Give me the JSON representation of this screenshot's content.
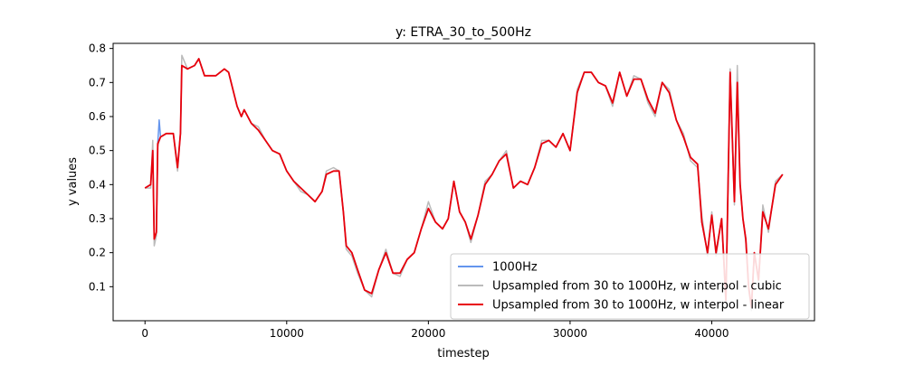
{
  "chart_data": {
    "type": "line",
    "title": "y: ETRA_30_to_500Hz",
    "xlabel": "timestep",
    "ylabel": "y values",
    "xlim": [
      -2250,
      47250
    ],
    "ylim": [
      0.0,
      0.815
    ],
    "x_ticks": [
      0,
      10000,
      20000,
      30000,
      40000
    ],
    "x_tick_labels": [
      "0",
      "10000",
      "20000",
      "30000",
      "40000"
    ],
    "y_ticks": [
      0.1,
      0.2,
      0.3,
      0.4,
      0.5,
      0.6,
      0.7,
      0.8
    ],
    "y_tick_labels": [
      "0.1",
      "0.2",
      "0.3",
      "0.4",
      "0.5",
      "0.6",
      "0.7",
      "0.8"
    ],
    "grid": false,
    "legend_position": "lower-right",
    "series": [
      {
        "name": "1000Hz",
        "color": "#6495ed",
        "x": [
          0,
          400,
          550,
          650,
          800,
          900,
          1000,
          1100,
          1500,
          2000,
          2300,
          2500,
          2600,
          3000,
          3500,
          3800,
          4200,
          5000,
          5600,
          5900,
          6500,
          6800,
          7000,
          7500,
          8000,
          8500,
          9000,
          9500,
          10000,
          10500,
          11000,
          11500,
          12000,
          12500,
          12800,
          13300,
          13700,
          14000,
          14200,
          14600,
          15000,
          15500,
          16000,
          16500,
          17000,
          17500,
          18000,
          18500,
          19000,
          19500,
          20000,
          20500,
          21000,
          21400,
          21800,
          22200,
          22600,
          23000,
          23500,
          24000,
          24500,
          25000,
          25500,
          26000,
          26500,
          27000,
          27500,
          28000,
          28500,
          29000,
          29500,
          30000,
          30500,
          31000,
          31500,
          32000,
          32500,
          33000,
          33500,
          34000,
          34500,
          35000,
          35500,
          36000,
          36500,
          37000,
          37500,
          38000,
          38500,
          39000,
          39300,
          39700,
          40000,
          40300,
          40700,
          41000,
          41300,
          41600,
          41800,
          42000,
          42200,
          42400,
          42600,
          42800,
          43000,
          43300,
          43600,
          44000,
          44500,
          45000
        ],
        "values": [
          0.39,
          0.4,
          0.5,
          0.24,
          0.26,
          0.52,
          0.59,
          0.54,
          0.55,
          0.55,
          0.45,
          0.55,
          0.75,
          0.74,
          0.75,
          0.77,
          0.72,
          0.72,
          0.74,
          0.73,
          0.63,
          0.6,
          0.62,
          0.58,
          0.56,
          0.53,
          0.5,
          0.49,
          0.44,
          0.41,
          0.39,
          0.37,
          0.35,
          0.38,
          0.43,
          0.44,
          0.44,
          0.32,
          0.22,
          0.2,
          0.15,
          0.09,
          0.08,
          0.15,
          0.2,
          0.14,
          0.14,
          0.18,
          0.2,
          0.27,
          0.33,
          0.29,
          0.27,
          0.3,
          0.41,
          0.32,
          0.29,
          0.24,
          0.31,
          0.4,
          0.43,
          0.47,
          0.49,
          0.39,
          0.41,
          0.4,
          0.45,
          0.52,
          0.53,
          0.51,
          0.55,
          0.5,
          0.67,
          0.73,
          0.73,
          0.7,
          0.69,
          0.64,
          0.73,
          0.66,
          0.71,
          0.71,
          0.65,
          0.61,
          0.7,
          0.67,
          0.59,
          0.54,
          0.48,
          0.46,
          0.29,
          0.2,
          0.31,
          0.2,
          0.3,
          0.06,
          0.73,
          0.35,
          0.7,
          0.4,
          0.3,
          0.24,
          0.1,
          0.04,
          0.2,
          0.12,
          0.32,
          0.27,
          0.4,
          0.43
        ]
      },
      {
        "name": "Upsampled from 30 to 1000Hz, w interpol - cubic",
        "color": "#bbbbbb",
        "x": [
          0,
          400,
          550,
          650,
          800,
          900,
          1000,
          1100,
          1500,
          2000,
          2300,
          2500,
          2600,
          3000,
          3500,
          3800,
          4200,
          5000,
          5600,
          5900,
          6500,
          6800,
          7000,
          7500,
          8000,
          8500,
          9000,
          9500,
          10000,
          10500,
          11000,
          11500,
          12000,
          12500,
          12800,
          13300,
          13700,
          14000,
          14200,
          14600,
          15000,
          15500,
          16000,
          16500,
          17000,
          17500,
          18000,
          18500,
          19000,
          19500,
          20000,
          20500,
          21000,
          21400,
          21800,
          22200,
          22600,
          23000,
          23500,
          24000,
          24500,
          25000,
          25500,
          26000,
          26500,
          27000,
          27500,
          28000,
          28500,
          29000,
          29500,
          30000,
          30500,
          31000,
          31500,
          32000,
          32500,
          33000,
          33500,
          34000,
          34500,
          35000,
          35500,
          36000,
          36500,
          37000,
          37500,
          38000,
          38500,
          39000,
          39300,
          39700,
          40000,
          40300,
          40700,
          41000,
          41300,
          41600,
          41800,
          42000,
          42200,
          42400,
          42600,
          42800,
          43000,
          43300,
          43600,
          44000,
          44500,
          45000
        ],
        "values": [
          0.39,
          0.39,
          0.53,
          0.22,
          0.25,
          0.51,
          0.53,
          0.54,
          0.55,
          0.55,
          0.44,
          0.55,
          0.78,
          0.74,
          0.75,
          0.77,
          0.72,
          0.72,
          0.74,
          0.73,
          0.63,
          0.6,
          0.62,
          0.58,
          0.57,
          0.53,
          0.5,
          0.49,
          0.44,
          0.41,
          0.38,
          0.37,
          0.35,
          0.38,
          0.44,
          0.45,
          0.44,
          0.32,
          0.21,
          0.19,
          0.14,
          0.09,
          0.07,
          0.15,
          0.21,
          0.14,
          0.13,
          0.18,
          0.2,
          0.27,
          0.35,
          0.29,
          0.27,
          0.3,
          0.41,
          0.32,
          0.29,
          0.23,
          0.31,
          0.41,
          0.43,
          0.47,
          0.5,
          0.39,
          0.41,
          0.4,
          0.45,
          0.53,
          0.53,
          0.51,
          0.55,
          0.5,
          0.68,
          0.73,
          0.73,
          0.7,
          0.69,
          0.63,
          0.73,
          0.66,
          0.72,
          0.71,
          0.64,
          0.6,
          0.7,
          0.68,
          0.59,
          0.55,
          0.47,
          0.45,
          0.31,
          0.19,
          0.32,
          0.19,
          0.3,
          0.05,
          0.74,
          0.34,
          0.75,
          0.41,
          0.3,
          0.23,
          0.09,
          0.03,
          0.2,
          0.11,
          0.34,
          0.26,
          0.41,
          0.43
        ]
      },
      {
        "name": "Upsampled from 30 to 1000Hz, w interpol - linear",
        "color": "#e8000b",
        "x": [
          0,
          400,
          550,
          650,
          800,
          900,
          1000,
          1100,
          1500,
          2000,
          2300,
          2500,
          2600,
          3000,
          3500,
          3800,
          4200,
          5000,
          5600,
          5900,
          6500,
          6800,
          7000,
          7500,
          8000,
          8500,
          9000,
          9500,
          10000,
          10500,
          11000,
          11500,
          12000,
          12500,
          12800,
          13300,
          13700,
          14000,
          14200,
          14600,
          15000,
          15500,
          16000,
          16500,
          17000,
          17500,
          18000,
          18500,
          19000,
          19500,
          20000,
          20500,
          21000,
          21400,
          21800,
          22200,
          22600,
          23000,
          23500,
          24000,
          24500,
          25000,
          25500,
          26000,
          26500,
          27000,
          27500,
          28000,
          28500,
          29000,
          29500,
          30000,
          30500,
          31000,
          31500,
          32000,
          32500,
          33000,
          33500,
          34000,
          34500,
          35000,
          35500,
          36000,
          36500,
          37000,
          37500,
          38000,
          38500,
          39000,
          39300,
          39700,
          40000,
          40300,
          40700,
          41000,
          41300,
          41600,
          41800,
          42000,
          42200,
          42400,
          42600,
          42800,
          43000,
          43300,
          43600,
          44000,
          44500,
          45000
        ],
        "values": [
          0.39,
          0.4,
          0.5,
          0.24,
          0.26,
          0.52,
          0.53,
          0.54,
          0.55,
          0.55,
          0.45,
          0.55,
          0.75,
          0.74,
          0.75,
          0.77,
          0.72,
          0.72,
          0.74,
          0.73,
          0.63,
          0.6,
          0.62,
          0.58,
          0.56,
          0.53,
          0.5,
          0.49,
          0.44,
          0.41,
          0.39,
          0.37,
          0.35,
          0.38,
          0.43,
          0.44,
          0.44,
          0.32,
          0.22,
          0.2,
          0.15,
          0.09,
          0.08,
          0.15,
          0.2,
          0.14,
          0.14,
          0.18,
          0.2,
          0.27,
          0.33,
          0.29,
          0.27,
          0.3,
          0.41,
          0.32,
          0.29,
          0.24,
          0.31,
          0.4,
          0.43,
          0.47,
          0.49,
          0.39,
          0.41,
          0.4,
          0.45,
          0.52,
          0.53,
          0.51,
          0.55,
          0.5,
          0.67,
          0.73,
          0.73,
          0.7,
          0.69,
          0.64,
          0.73,
          0.66,
          0.71,
          0.71,
          0.65,
          0.61,
          0.7,
          0.67,
          0.59,
          0.54,
          0.48,
          0.46,
          0.29,
          0.2,
          0.31,
          0.2,
          0.3,
          0.06,
          0.73,
          0.35,
          0.7,
          0.4,
          0.3,
          0.24,
          0.1,
          0.04,
          0.2,
          0.12,
          0.32,
          0.27,
          0.4,
          0.43
        ]
      }
    ]
  }
}
